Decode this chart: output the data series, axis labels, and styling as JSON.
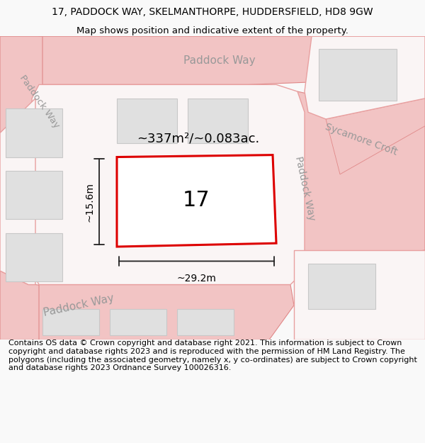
{
  "title": "17, PADDOCK WAY, SKELMANTHORPE, HUDDERSFIELD, HD8 9GW",
  "subtitle": "Map shows position and indicative extent of the property.",
  "footer": "Contains OS data © Crown copyright and database right 2021. This information is subject to Crown copyright and database rights 2023 and is reproduced with the permission of HM Land Registry. The polygons (including the associated geometry, namely x, y co-ordinates) are subject to Crown copyright and database rights 2023 Ordnance Survey 100026316.",
  "map_bg": "#ffffff",
  "road_fill": "#f2c4c4",
  "road_edge": "#e08888",
  "block_fill": "#faf5f5",
  "block_edge": "#e8a0a0",
  "building_fill": "#e0e0e0",
  "building_edge": "#c8c8c8",
  "plot_color": "#dd0000",
  "dim_color": "#222222",
  "street_color": "#999999",
  "area_text": "~337m²/~0.083ac.",
  "number_text": "17",
  "dim_width": "~29.2m",
  "dim_height": "~15.6m",
  "title_fontsize": 10,
  "subtitle_fontsize": 9.5,
  "footer_fontsize": 8
}
